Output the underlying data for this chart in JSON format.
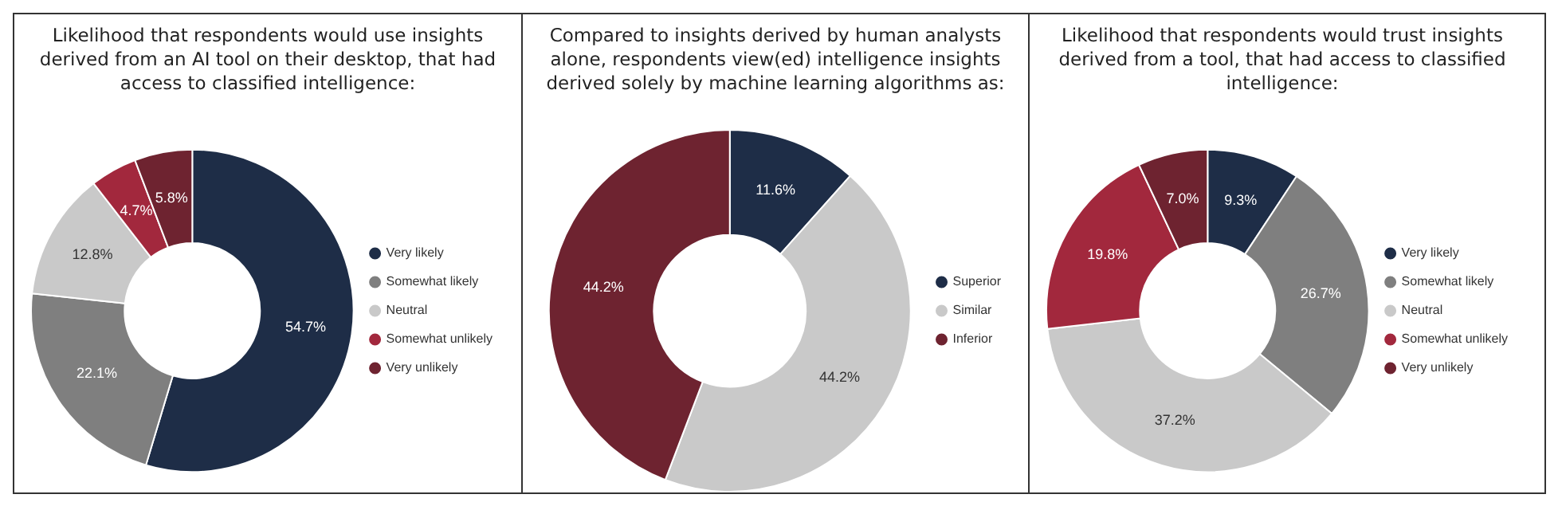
{
  "chart_data": [
    {
      "type": "donut",
      "title": "Likelihood that respondents would use insights derived from an AI tool on their desktop, that had access to classified intelligence:",
      "categories": [
        "Very likely",
        "Somewhat likely",
        "Neutral",
        "Somewhat unlikely",
        "Very unlikely"
      ],
      "values": [
        54.7,
        22.1,
        12.8,
        4.7,
        5.8
      ],
      "colors": [
        "#1e2d47",
        "#7f7f7f",
        "#c9c9c9",
        "#a2283d",
        "#6e2330"
      ],
      "value_labels": [
        "54.7%",
        "22.1%",
        "12.8%",
        "4.7%",
        "5.8%"
      ],
      "legend": "right"
    },
    {
      "type": "donut",
      "title": "Compared to insights derived by human analysts alone, respondents view(ed) intelligence insights derived solely by machine learning algorithms as:",
      "categories": [
        "Superior",
        "Similar",
        "Inferior"
      ],
      "values": [
        11.6,
        44.2,
        44.2
      ],
      "colors": [
        "#1e2d47",
        "#c9c9c9",
        "#6e2330"
      ],
      "value_labels": [
        "11.6%",
        "44.2%",
        "44.2%"
      ],
      "legend": "right"
    },
    {
      "type": "donut",
      "title": "Likelihood that respondents would trust insights derived from a tool, that had access to classified intelligence:",
      "categories": [
        "Very likely",
        "Somewhat likely",
        "Neutral",
        "Somewhat unlikely",
        "Very unlikely"
      ],
      "values": [
        9.3,
        26.7,
        37.2,
        19.8,
        7.0
      ],
      "colors": [
        "#1e2d47",
        "#7f7f7f",
        "#c9c9c9",
        "#a2283d",
        "#6e2330"
      ],
      "value_labels": [
        "9.3%",
        "26.7%",
        "37.2%",
        "19.8%",
        "7.0%"
      ],
      "legend": "right"
    }
  ]
}
